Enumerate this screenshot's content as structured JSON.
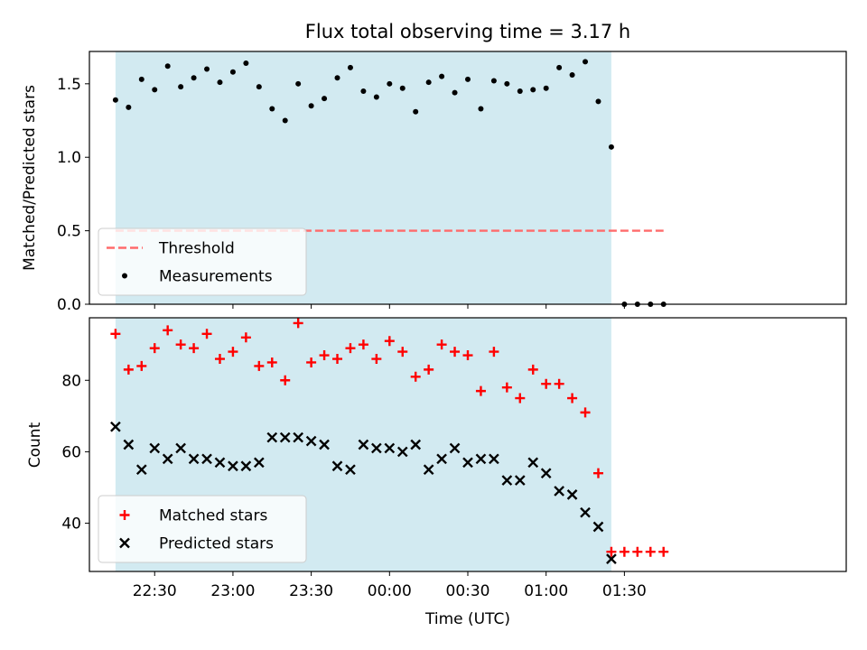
{
  "chart_data": [
    {
      "type": "scatter",
      "title": "Flux total observing time = 3.17 h",
      "xlabel": "",
      "ylabel": "Matched/Predicted stars",
      "ylim": [
        0,
        1.72
      ],
      "yticks": [
        0.0,
        0.5,
        1.0,
        1.5
      ],
      "ytick_labels": [
        "0.0",
        "0.5",
        "1.0",
        "1.5"
      ],
      "observing_window": [
        "22:15",
        "01:25"
      ],
      "shade_color": "#add8e6",
      "legend_position": "lower-left",
      "threshold": {
        "name": "Threshold",
        "value": 0.5,
        "x_range": [
          "22:15",
          "01:45"
        ],
        "color": "#ff6b6b",
        "style": "dashed"
      },
      "series": [
        {
          "name": "Measurements",
          "marker": "dot",
          "color": "#000000",
          "x": [
            "22:15",
            "22:20",
            "22:25",
            "22:30",
            "22:35",
            "22:40",
            "22:45",
            "22:50",
            "22:55",
            "23:00",
            "23:05",
            "23:10",
            "23:15",
            "23:20",
            "23:25",
            "23:30",
            "23:35",
            "23:40",
            "23:45",
            "23:50",
            "23:55",
            "00:00",
            "00:05",
            "00:10",
            "00:15",
            "00:20",
            "00:25",
            "00:30",
            "00:35",
            "00:40",
            "00:45",
            "00:50",
            "00:55",
            "01:00",
            "01:05",
            "01:10",
            "01:15",
            "01:20",
            "01:25",
            "01:30",
            "01:35",
            "01:40",
            "01:45"
          ],
          "y": [
            1.39,
            1.34,
            1.53,
            1.46,
            1.62,
            1.48,
            1.54,
            1.6,
            1.51,
            1.58,
            1.64,
            1.48,
            1.33,
            1.25,
            1.5,
            1.35,
            1.4,
            1.54,
            1.61,
            1.45,
            1.41,
            1.5,
            1.47,
            1.31,
            1.51,
            1.55,
            1.44,
            1.53,
            1.33,
            1.52,
            1.5,
            1.45,
            1.46,
            1.47,
            1.61,
            1.56,
            1.65,
            1.38,
            1.07,
            0.0,
            0.0,
            0.0,
            0.0
          ]
        }
      ]
    },
    {
      "type": "scatter",
      "title": "",
      "xlabel": "Time (UTC)",
      "ylabel": "Count",
      "ylim": [
        26.5,
        97.5
      ],
      "yticks": [
        40,
        60,
        80
      ],
      "ytick_labels": [
        "40",
        "60",
        "80"
      ],
      "xticks": [
        "22:30",
        "23:00",
        "23:30",
        "00:00",
        "00:30",
        "01:00",
        "01:30"
      ],
      "observing_window": [
        "22:15",
        "01:25"
      ],
      "shade_color": "#add8e6",
      "legend_position": "lower-left",
      "series": [
        {
          "name": "Matched stars",
          "marker": "plus",
          "color": "#ff0000",
          "x": [
            "22:15",
            "22:20",
            "22:25",
            "22:30",
            "22:35",
            "22:40",
            "22:45",
            "22:50",
            "22:55",
            "23:00",
            "23:05",
            "23:10",
            "23:15",
            "23:20",
            "23:25",
            "23:30",
            "23:35",
            "23:40",
            "23:45",
            "23:50",
            "23:55",
            "00:00",
            "00:05",
            "00:10",
            "00:15",
            "00:20",
            "00:25",
            "00:30",
            "00:35",
            "00:40",
            "00:45",
            "00:50",
            "00:55",
            "01:00",
            "01:05",
            "01:10",
            "01:15",
            "01:20",
            "01:25",
            "01:30",
            "01:35",
            "01:40",
            "01:45"
          ],
          "y": [
            93,
            83,
            84,
            89,
            94,
            90,
            89,
            93,
            86,
            88,
            92,
            84,
            85,
            80,
            96,
            85,
            87,
            86,
            89,
            90,
            86,
            91,
            88,
            81,
            83,
            90,
            88,
            87,
            77,
            88,
            78,
            75,
            83,
            79,
            79,
            75,
            71,
            54,
            32,
            32,
            32,
            32,
            32
          ]
        },
        {
          "name": "Predicted stars",
          "marker": "x",
          "color": "#000000",
          "x": [
            "22:15",
            "22:20",
            "22:25",
            "22:30",
            "22:35",
            "22:40",
            "22:45",
            "22:50",
            "22:55",
            "23:00",
            "23:05",
            "23:10",
            "23:15",
            "23:20",
            "23:25",
            "23:30",
            "23:35",
            "23:40",
            "23:45",
            "23:50",
            "23:55",
            "00:00",
            "00:05",
            "00:10",
            "00:15",
            "00:20",
            "00:25",
            "00:30",
            "00:35",
            "00:40",
            "00:45",
            "00:50",
            "00:55",
            "01:00",
            "01:05",
            "01:10",
            "01:15",
            "01:20",
            "01:25"
          ],
          "y": [
            67,
            62,
            55,
            61,
            58,
            61,
            58,
            58,
            57,
            56,
            56,
            57,
            64,
            64,
            64,
            63,
            62,
            56,
            55,
            62,
            61,
            61,
            60,
            62,
            55,
            58,
            61,
            57,
            58,
            58,
            52,
            52,
            57,
            54,
            49,
            48,
            43,
            39,
            30
          ]
        }
      ]
    }
  ]
}
